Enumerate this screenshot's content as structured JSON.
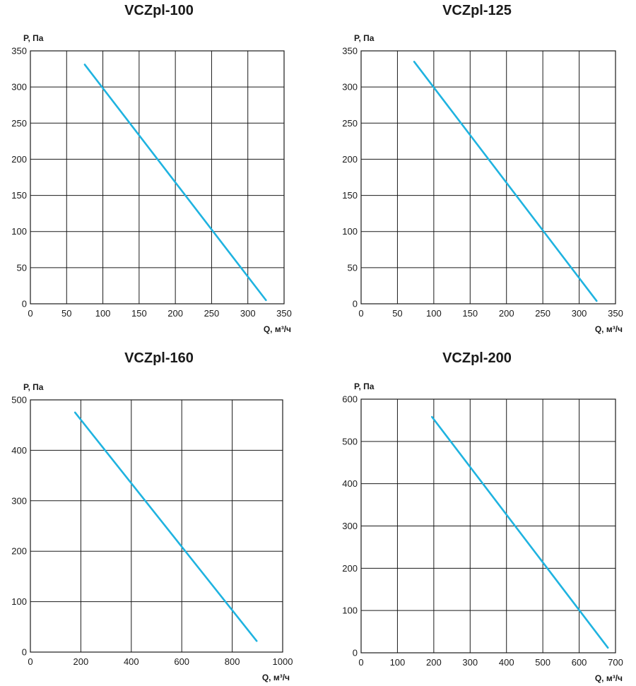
{
  "chart_data": [
    {
      "type": "line",
      "title": "VCZpl-100",
      "ylabel": "P, Па",
      "xlabel": "Q, м³/ч",
      "xlim": [
        0,
        350
      ],
      "ylim": [
        0,
        350
      ],
      "xticks": [
        0,
        50,
        100,
        150,
        200,
        250,
        300,
        350
      ],
      "yticks": [
        0,
        50,
        100,
        150,
        200,
        250,
        300,
        350
      ],
      "grid": true,
      "color": "#1fb3e0",
      "series": [
        {
          "x": [
            75,
            325
          ],
          "y": [
            331,
            5
          ]
        }
      ]
    },
    {
      "type": "line",
      "title": "VCZpl-125",
      "ylabel": "P, Па",
      "xlabel": "Q, м³/ч",
      "xlim": [
        0,
        350
      ],
      "ylim": [
        0,
        350
      ],
      "xticks": [
        0,
        50,
        100,
        150,
        200,
        250,
        300,
        350
      ],
      "yticks": [
        0,
        50,
        100,
        150,
        200,
        250,
        300,
        350
      ],
      "grid": true,
      "color": "#1fb3e0",
      "series": [
        {
          "x": [
            73,
            324
          ],
          "y": [
            335,
            4
          ]
        }
      ]
    },
    {
      "type": "line",
      "title": "VCZpl-160",
      "ylabel": "P, Па",
      "xlabel": "Q, м³/ч",
      "xlim": [
        0,
        1000
      ],
      "ylim": [
        0,
        500
      ],
      "xticks": [
        0,
        200,
        400,
        600,
        800,
        1000
      ],
      "yticks": [
        0,
        100,
        200,
        300,
        400,
        500
      ],
      "grid": true,
      "color": "#1fb3e0",
      "series": [
        {
          "x": [
            177,
            897
          ],
          "y": [
            475,
            22
          ]
        }
      ]
    },
    {
      "type": "line",
      "title": "VCZpl-200",
      "ylabel": "P, Па",
      "xlabel": "Q, м³/ч",
      "xlim": [
        0,
        700
      ],
      "ylim": [
        0,
        600
      ],
      "xticks": [
        0,
        100,
        200,
        300,
        400,
        500,
        600,
        700
      ],
      "yticks": [
        0,
        100,
        200,
        300,
        400,
        500,
        600
      ],
      "grid": true,
      "color": "#1fb3e0",
      "series": [
        {
          "x": [
            195,
            679
          ],
          "y": [
            558,
            12
          ]
        }
      ]
    }
  ]
}
